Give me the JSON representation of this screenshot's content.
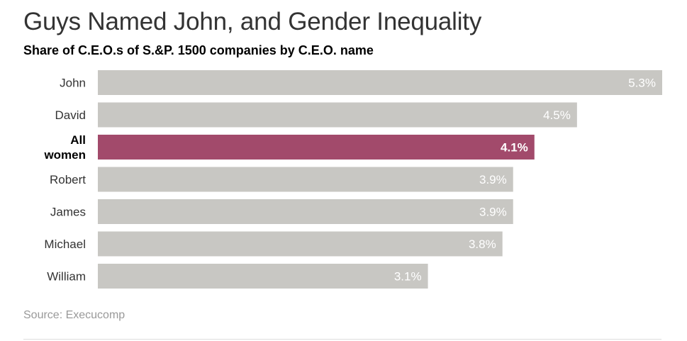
{
  "chart_data": {
    "type": "bar",
    "orientation": "horizontal",
    "title": "Guys Named John, and Gender Inequality",
    "subtitle": "Share of C.E.O.s of S.&P. 1500 companies by C.E.O. name",
    "categories": [
      "John",
      "David",
      "All women",
      "Robert",
      "James",
      "Michael",
      "William"
    ],
    "category_lines": [
      [
        "John"
      ],
      [
        "David"
      ],
      [
        "All",
        "women"
      ],
      [
        "Robert"
      ],
      [
        "James"
      ],
      [
        "Michael"
      ],
      [
        "William"
      ]
    ],
    "values": [
      5.3,
      4.5,
      4.1,
      3.9,
      3.9,
      3.8,
      3.1
    ],
    "value_labels": [
      "5.3%",
      "4.5%",
      "4.1%",
      "3.9%",
      "3.9%",
      "3.8%",
      "3.1%"
    ],
    "highlight_index": 2,
    "xlim": [
      0,
      5.3
    ],
    "xlabel": "",
    "ylabel": "",
    "grid": false,
    "legend": "none",
    "colors": {
      "bar": "#c8c7c3",
      "highlight": "#a24a6b",
      "value_label": "#ffffff"
    },
    "source": "Source: Execucomp"
  }
}
